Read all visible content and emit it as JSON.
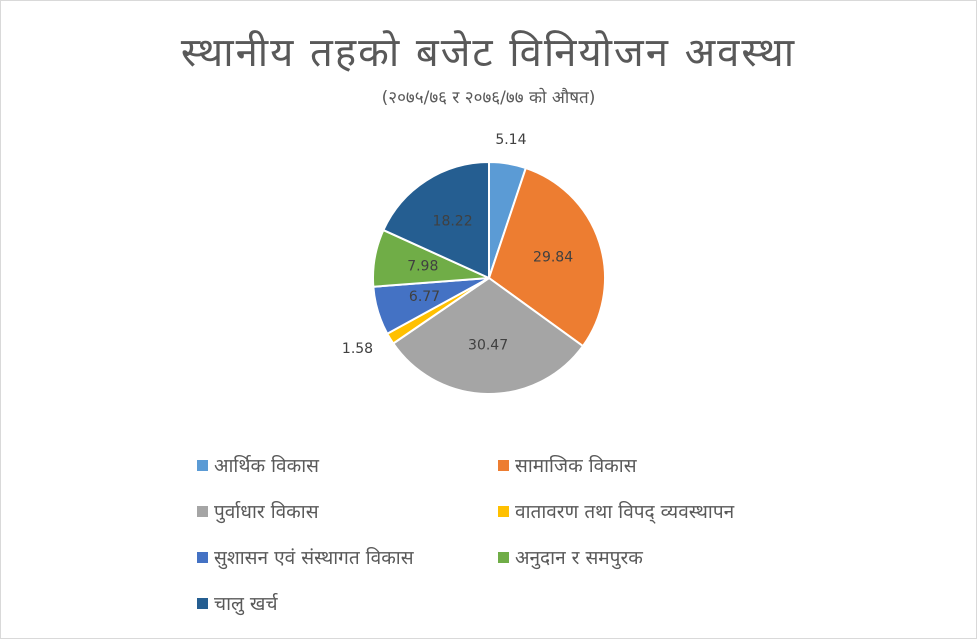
{
  "chart_data": {
    "type": "pie",
    "title": "स्थानीय तहको बजेट विनियोजन अवस्था",
    "subtitle": "(२०७५/७६ र २०७६/७७ को औषत)",
    "series": [
      {
        "name": "आर्थिक विकास",
        "value": 5.14,
        "label": "5.14",
        "color": "#5b9bd5"
      },
      {
        "name": "सामाजिक विकास",
        "value": 29.84,
        "label": "29.84",
        "color": "#ed7d31"
      },
      {
        "name": "पुर्वाधार विकास",
        "value": 30.47,
        "label": "30.47",
        "color": "#a5a5a5"
      },
      {
        "name": "वातावरण तथा विपद् व्यवस्थापन",
        "value": 1.58,
        "label": "1.58",
        "color": "#ffc000"
      },
      {
        "name": "सुशासन एवं संस्थागत विकास",
        "value": 6.77,
        "label": "6.77",
        "color": "#4472c4"
      },
      {
        "name": "अनुदान र समपुरक",
        "value": 7.98,
        "label": "7.98",
        "color": "#70ad47"
      },
      {
        "name": "चालु खर्च",
        "value": 18.22,
        "label": "18.22",
        "color": "#255e91"
      }
    ],
    "legend_position": "bottom"
  }
}
